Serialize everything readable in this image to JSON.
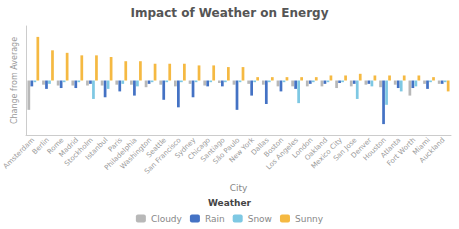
{
  "chart_data": {
    "type": "bar",
    "title": "Impact of Weather on Energy",
    "xlabel": "City",
    "ylabel": "Change from Average",
    "categories": [
      "Amsterdam",
      "Berlin",
      "Rome",
      "Madrid",
      "Stockholm",
      "Istanbul",
      "Paris",
      "Philadelphia",
      "Washington",
      "Seattle",
      "San Francisco",
      "Sydney",
      "Chicago",
      "Santiago",
      "São Paulo",
      "New York",
      "Dallas",
      "Boston",
      "Los Angeles",
      "London",
      "Oakland",
      "Mexico City",
      "San Jose",
      "Denver",
      "Houston",
      "Atlanta",
      "Fort Worth",
      "Miami",
      "Auckland"
    ],
    "series": [
      {
        "name": "Cloudy",
        "color": "#b8b8b8",
        "values": [
          -3.5,
          -0.5,
          -0.6,
          -0.6,
          -0.6,
          -0.6,
          -0.5,
          -0.5,
          -0.8,
          -0.5,
          -0.7,
          -0.4,
          -0.6,
          -0.3,
          -0.5,
          -0.4,
          -0.5,
          -0.7,
          -0.7,
          -0.7,
          -0.7,
          -0.9,
          -0.7,
          -0.5,
          -0.8,
          -0.5,
          -1.8,
          -0.4,
          -0.4
        ]
      },
      {
        "name": "Rain",
        "color": "#4472c4",
        "values": [
          -0.7,
          -1.0,
          -0.9,
          -0.9,
          -0.4,
          -2.0,
          -1.3,
          -1.8,
          -0.4,
          -2.3,
          -3.2,
          -2.0,
          -0.7,
          -0.7,
          -3.5,
          -1.8,
          -2.8,
          -1.3,
          -1.0,
          -0.4,
          -0.4,
          -0.3,
          -0.4,
          -0.4,
          -5.2,
          -0.9,
          -0.9,
          -1.0,
          -0.4
        ]
      },
      {
        "name": "Snow",
        "color": "#7ec8e3",
        "values": [
          -0.2,
          -0.4,
          -0.2,
          -0.2,
          -2.2,
          -1.0,
          -0.4,
          -0.7,
          -0.2,
          -0.2,
          -0.2,
          -0.2,
          -0.2,
          -0.2,
          -0.2,
          -0.2,
          -0.2,
          -0.2,
          -2.7,
          -0.2,
          -0.2,
          -0.2,
          -2.2,
          -0.7,
          -2.9,
          -1.3,
          -0.7,
          -0.2,
          -0.2
        ]
      },
      {
        "name": "Sunny",
        "color": "#f5b942",
        "values": [
          5.2,
          3.6,
          3.3,
          3.0,
          3.0,
          2.8,
          2.3,
          2.3,
          2.0,
          2.0,
          2.0,
          1.8,
          1.8,
          1.6,
          1.6,
          0.4,
          0.4,
          0.4,
          0.4,
          0.4,
          0.6,
          0.6,
          0.8,
          0.6,
          0.6,
          0.6,
          0.6,
          0.4,
          -1.3
        ]
      }
    ],
    "ylim": [
      -6.5,
      6.5
    ],
    "tick_labels": "x",
    "grid": false,
    "legend": "bottom",
    "legend_title": "Weather"
  }
}
